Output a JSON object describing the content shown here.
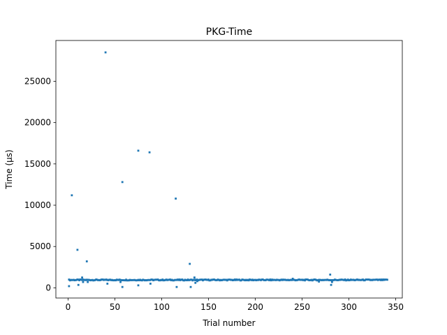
{
  "chart_data": {
    "type": "scatter",
    "title": "PKG-Time",
    "xlabel": "Trial number",
    "ylabel": "Time (μs)",
    "xlim": [
      -13.05,
      357.05
    ],
    "ylim": [
      -1235,
      29940
    ],
    "xticks": [
      0,
      50,
      100,
      150,
      200,
      250,
      300,
      350
    ],
    "xtick_labels": [
      "0",
      "50",
      "100",
      "150",
      "200",
      "250",
      "300",
      "350"
    ],
    "yticks": [
      0,
      5000,
      10000,
      15000,
      20000,
      25000
    ],
    "ytick_labels": [
      "0",
      "5000",
      "10000",
      "15000",
      "20000",
      "25000"
    ],
    "grid": false,
    "color": "#1f77b4",
    "baseline": {
      "x_start": 1,
      "x_end": 341,
      "value": 950,
      "jitter": 60
    },
    "outliers": [
      {
        "x": 1,
        "y": 200
      },
      {
        "x": 4,
        "y": 11200
      },
      {
        "x": 10,
        "y": 4600
      },
      {
        "x": 11,
        "y": 350
      },
      {
        "x": 15,
        "y": 1250
      },
      {
        "x": 16,
        "y": 700
      },
      {
        "x": 20,
        "y": 3200
      },
      {
        "x": 21,
        "y": 700
      },
      {
        "x": 40,
        "y": 28500
      },
      {
        "x": 42,
        "y": 500
      },
      {
        "x": 56,
        "y": 700
      },
      {
        "x": 58,
        "y": 12800
      },
      {
        "x": 58,
        "y": 100
      },
      {
        "x": 75,
        "y": 16600
      },
      {
        "x": 75,
        "y": 300
      },
      {
        "x": 87,
        "y": 16400
      },
      {
        "x": 88,
        "y": 500
      },
      {
        "x": 115,
        "y": 10800
      },
      {
        "x": 116,
        "y": 100
      },
      {
        "x": 130,
        "y": 2900
      },
      {
        "x": 131,
        "y": 100
      },
      {
        "x": 135,
        "y": 1250
      },
      {
        "x": 136,
        "y": 600
      },
      {
        "x": 138,
        "y": 800
      },
      {
        "x": 280,
        "y": 1600
      },
      {
        "x": 281,
        "y": 350
      },
      {
        "x": 282,
        "y": 700
      },
      {
        "x": 268,
        "y": 750
      },
      {
        "x": 240,
        "y": 1100
      }
    ]
  }
}
